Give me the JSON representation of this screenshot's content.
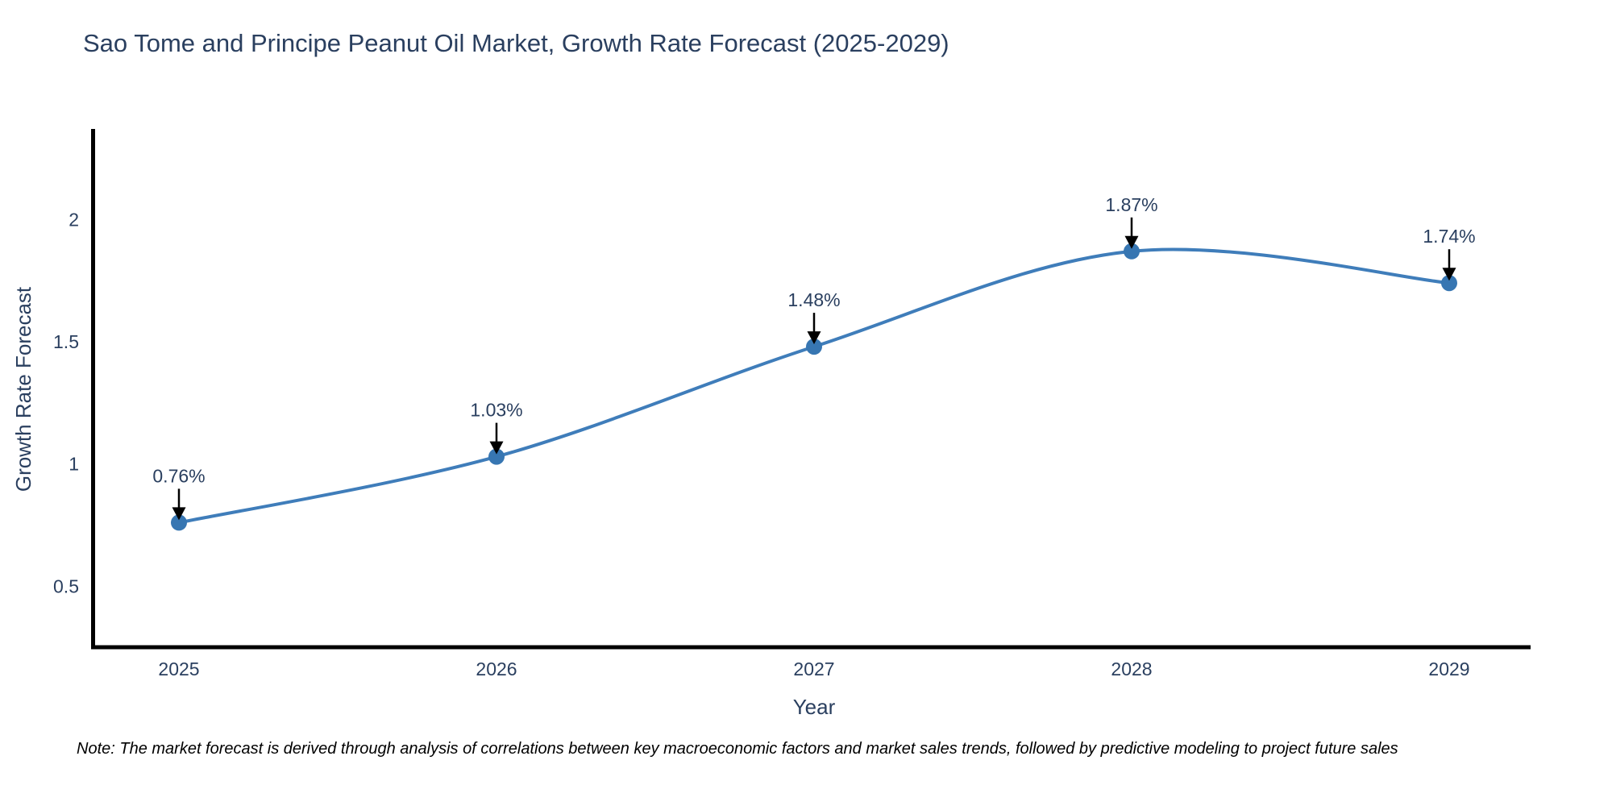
{
  "chart_data": {
    "type": "line",
    "title": "Sao Tome and Principe Peanut Oil Market, Growth Rate Forecast (2025-2029)",
    "xlabel": "Year",
    "ylabel": "Growth Rate Forecast",
    "categories": [
      "2025",
      "2026",
      "2027",
      "2028",
      "2029"
    ],
    "values": [
      0.76,
      1.03,
      1.48,
      1.87,
      1.74
    ],
    "point_labels": [
      "0.76%",
      "1.03%",
      "1.48%",
      "1.87%",
      "1.74%"
    ],
    "y_ticks": [
      0.5,
      1,
      1.5,
      2
    ],
    "y_tick_labels": [
      "0.5",
      "1",
      "1.5",
      "2"
    ],
    "ylim": [
      0.24,
      2.37
    ],
    "line_shape": "spline",
    "grid": false,
    "legend_position": "none",
    "annotations": "value labels with downward arrows above each point",
    "colors": {
      "line": "#3f7dba",
      "marker": "#3776b2",
      "axis": "#000000",
      "text": "#2a3f5f",
      "annotation_arrow": "#000000"
    }
  },
  "note": {
    "text": "Note: The market forecast is derived through analysis of correlations between key macroeconomic factors and market sales trends, followed by predictive modeling to project future sales"
  }
}
